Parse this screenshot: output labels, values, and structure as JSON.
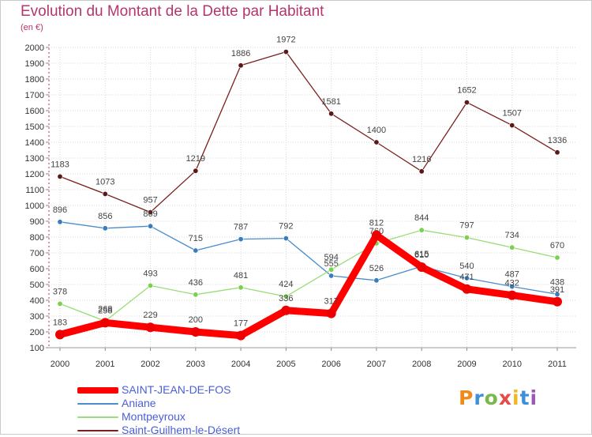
{
  "title": "Evolution du Montant de la Dette par Habitant",
  "subtitle": "(en €)",
  "logo": {
    "text": "Proxiti",
    "colors": [
      "#f08a1c",
      "#3f8fd8",
      "#7ab84a",
      "#e84a4a",
      "#f0b81c",
      "#3f8fd8",
      "#9b59b6"
    ]
  },
  "colors": {
    "grid": "#d8d8d8",
    "axis": "#b03060"
  },
  "chart_data": {
    "type": "line",
    "title": "Evolution du Montant de la Dette par Habitant",
    "ylabel": "(en €)",
    "xlabel": "",
    "x": [
      "2000",
      "2001",
      "2002",
      "2003",
      "2004",
      "2005",
      "2006",
      "2007",
      "2008",
      "2009",
      "2010",
      "2011"
    ],
    "ylim": [
      100,
      2000
    ],
    "yticks": [
      100,
      200,
      300,
      400,
      500,
      600,
      700,
      800,
      900,
      1000,
      1100,
      1200,
      1300,
      1400,
      1500,
      1600,
      1700,
      1800,
      1900,
      2000
    ],
    "grid": true,
    "legend": "bottom-left",
    "series": [
      {
        "name": "Saint-Guilhem-le-Désert",
        "color": "#7a2020",
        "marker": "#5a1818",
        "values": [
          1183,
          1073,
          957,
          1219,
          1886,
          1972,
          1581,
          1400,
          1216,
          1652,
          1507,
          1336
        ],
        "labels": [
          "1183",
          "1073",
          "957",
          "1219",
          "1886",
          "1972",
          "1581",
          "1400",
          "1216",
          "1652",
          "1507",
          "1336"
        ]
      },
      {
        "name": "Aniane",
        "color": "#4a8ccc",
        "marker": "#3a7cbc",
        "values": [
          896,
          856,
          869,
          715,
          787,
          792,
          555,
          526,
          615,
          540,
          487,
          438
        ],
        "labels": [
          "896",
          "856",
          "869",
          "715",
          "787",
          "792",
          "555",
          "526",
          "615",
          "540",
          "487",
          "438"
        ]
      },
      {
        "name": "Montpeyroux",
        "color": "#99dd77",
        "marker": "#7cd050",
        "values": [
          378,
          268,
          493,
          436,
          481,
          424,
          594,
          760,
          844,
          797,
          734,
          670
        ],
        "labels": [
          "378",
          "268",
          "493",
          "436",
          "481",
          "424",
          "594",
          "760",
          "844",
          "797",
          "734",
          "670"
        ]
      },
      {
        "name": "SAINT-JEAN-DE-FOS",
        "color": "#ff0000",
        "marker": "#ee0000",
        "values": [
          183,
          258,
          229,
          200,
          177,
          336,
          317,
          812,
          610,
          471,
          432,
          391
        ],
        "labels": [
          "183",
          "258",
          "229",
          "200",
          "177",
          "336",
          "317",
          "812",
          "610",
          "471",
          "432",
          "391"
        ]
      }
    ]
  },
  "legend_items": [
    {
      "name": "SAINT-JEAN-DE-FOS",
      "color": "#ff0000",
      "thick": true
    },
    {
      "name": "Aniane",
      "color": "#4a8ccc",
      "thick": false
    },
    {
      "name": "Montpeyroux",
      "color": "#99dd77",
      "thick": false
    },
    {
      "name": "Saint-Guilhem-le-Désert",
      "color": "#7a2020",
      "thick": false
    }
  ]
}
